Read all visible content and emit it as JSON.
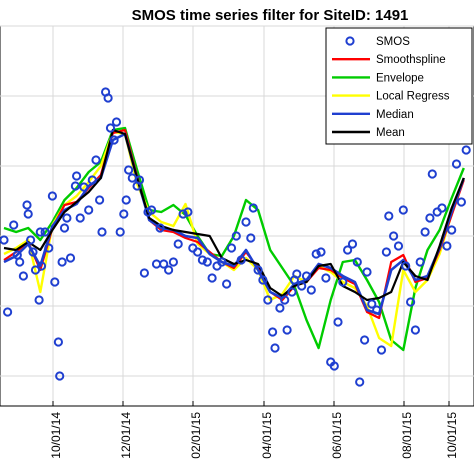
{
  "chart_data": {
    "type": "line",
    "title": "SMOS time series filter for SiteID: 1491",
    "xlabel": "",
    "ylabel": "",
    "x_ticks": [
      "10/01/14",
      "12/01/14",
      "02/01/15",
      "04/01/15",
      "06/01/15",
      "08/01/15",
      "10/01/15"
    ],
    "grid": true,
    "legend_position": "top-right",
    "series": [
      {
        "name": "SMOS",
        "style": "markers",
        "color": "#1f3fd0",
        "points": [
          [
            0.0,
            240
          ],
          [
            0.3,
            312
          ],
          [
            0.8,
            225
          ],
          [
            1.1,
            255
          ],
          [
            1.3,
            262
          ],
          [
            1.6,
            276
          ],
          [
            1.9,
            205
          ],
          [
            2.0,
            214
          ],
          [
            2.2,
            240
          ],
          [
            2.4,
            252
          ],
          [
            2.6,
            270
          ],
          [
            2.9,
            300
          ],
          [
            3.0,
            232
          ],
          [
            3.1,
            266
          ],
          [
            3.4,
            232
          ],
          [
            3.7,
            248
          ],
          [
            4.0,
            196
          ],
          [
            4.2,
            282
          ],
          [
            4.5,
            342
          ],
          [
            4.6,
            376
          ],
          [
            4.8,
            262
          ],
          [
            5.0,
            228
          ],
          [
            5.2,
            218
          ],
          [
            5.5,
            258
          ],
          [
            5.9,
            186
          ],
          [
            6.0,
            176
          ],
          [
            6.3,
            218
          ],
          [
            6.6,
            187
          ],
          [
            7.0,
            210
          ],
          [
            7.3,
            180
          ],
          [
            7.6,
            160
          ],
          [
            7.9,
            200
          ],
          [
            8.1,
            232
          ],
          [
            8.4,
            92
          ],
          [
            8.6,
            98
          ],
          [
            8.8,
            128
          ],
          [
            9.1,
            140
          ],
          [
            9.3,
            122
          ],
          [
            9.6,
            232
          ],
          [
            9.9,
            214
          ],
          [
            10.1,
            200
          ],
          [
            10.3,
            170
          ],
          [
            10.6,
            178
          ],
          [
            11.0,
            186
          ],
          [
            11.2,
            180
          ],
          [
            11.6,
            273
          ],
          [
            11.9,
            212
          ],
          [
            12.2,
            210
          ],
          [
            12.6,
            264
          ],
          [
            12.9,
            228
          ],
          [
            13.2,
            264
          ],
          [
            13.6,
            270
          ],
          [
            14.0,
            262
          ],
          [
            14.4,
            244
          ],
          [
            14.8,
            214
          ],
          [
            15.2,
            212
          ],
          [
            15.6,
            248
          ],
          [
            16.0,
            252
          ],
          [
            16.4,
            260
          ],
          [
            16.8,
            262
          ],
          [
            17.2,
            278
          ],
          [
            17.6,
            266
          ],
          [
            18.0,
            262
          ],
          [
            18.4,
            284
          ],
          [
            18.8,
            248
          ],
          [
            19.2,
            236
          ],
          [
            19.6,
            260
          ],
          [
            20.0,
            222
          ],
          [
            20.4,
            238
          ],
          [
            20.6,
            208
          ],
          [
            21.0,
            270
          ],
          [
            21.4,
            280
          ],
          [
            21.8,
            300
          ],
          [
            22.2,
            332
          ],
          [
            22.4,
            348
          ],
          [
            22.8,
            308
          ],
          [
            23.2,
            300
          ],
          [
            23.4,
            330
          ],
          [
            23.8,
            292
          ],
          [
            24.0,
            280
          ],
          [
            24.2,
            274
          ],
          [
            24.6,
            286
          ],
          [
            25.0,
            276
          ],
          [
            25.4,
            290
          ],
          [
            25.8,
            254
          ],
          [
            26.2,
            252
          ],
          [
            26.6,
            278
          ],
          [
            27.0,
            362
          ],
          [
            27.3,
            366
          ],
          [
            27.6,
            322
          ],
          [
            28.0,
            282
          ],
          [
            28.4,
            250
          ],
          [
            28.8,
            244
          ],
          [
            29.2,
            262
          ],
          [
            29.4,
            382
          ],
          [
            29.8,
            340
          ],
          [
            30.0,
            272
          ],
          [
            30.4,
            304
          ],
          [
            30.8,
            310
          ],
          [
            31.2,
            350
          ],
          [
            31.6,
            252
          ],
          [
            31.8,
            216
          ],
          [
            32.2,
            236
          ],
          [
            32.6,
            246
          ],
          [
            33.0,
            210
          ],
          [
            33.2,
            266
          ],
          [
            33.6,
            302
          ],
          [
            34.0,
            330
          ],
          [
            34.4,
            262
          ],
          [
            34.8,
            232
          ],
          [
            35.2,
            218
          ],
          [
            35.4,
            174
          ],
          [
            35.8,
            212
          ],
          [
            36.2,
            208
          ],
          [
            36.6,
            246
          ],
          [
            37.0,
            230
          ],
          [
            37.4,
            164
          ],
          [
            37.8,
            202
          ],
          [
            38.2,
            150
          ]
        ]
      },
      {
        "name": "Smoothspline",
        "style": "line",
        "color": "#ff0000",
        "points": [
          [
            0.0,
            260
          ],
          [
            1.0,
            252
          ],
          [
            2.0,
            242
          ],
          [
            3.0,
            270
          ],
          [
            4.0,
            228
          ],
          [
            5.0,
            205
          ],
          [
            6.0,
            202
          ],
          [
            7.0,
            188
          ],
          [
            8.0,
            175
          ],
          [
            9.0,
            133
          ],
          [
            10.0,
            130
          ],
          [
            11.0,
            176
          ],
          [
            12.0,
            220
          ],
          [
            13.0,
            230
          ],
          [
            14.0,
            232
          ],
          [
            15.0,
            238
          ],
          [
            16.0,
            242
          ],
          [
            17.0,
            252
          ],
          [
            18.0,
            262
          ],
          [
            19.0,
            268
          ],
          [
            20.0,
            252
          ],
          [
            21.0,
            268
          ],
          [
            22.0,
            292
          ],
          [
            23.0,
            300
          ],
          [
            24.0,
            286
          ],
          [
            25.0,
            282
          ],
          [
            26.0,
            268
          ],
          [
            27.0,
            270
          ],
          [
            28.0,
            278
          ],
          [
            29.0,
            284
          ],
          [
            30.0,
            312
          ],
          [
            31.0,
            318
          ],
          [
            32.0,
            262
          ],
          [
            33.0,
            255
          ],
          [
            34.0,
            282
          ],
          [
            35.0,
            278
          ],
          [
            36.0,
            250
          ],
          [
            37.0,
            215
          ],
          [
            38.0,
            180
          ]
        ]
      },
      {
        "name": "Envelope",
        "style": "line",
        "color": "#00cc00",
        "points": [
          [
            0.0,
            228
          ],
          [
            1.0,
            232
          ],
          [
            2.0,
            228
          ],
          [
            3.0,
            240
          ],
          [
            4.0,
            222
          ],
          [
            5.0,
            200
          ],
          [
            6.0,
            188
          ],
          [
            7.0,
            172
          ],
          [
            8.0,
            162
          ],
          [
            9.0,
            130
          ],
          [
            10.0,
            128
          ],
          [
            11.0,
            170
          ],
          [
            12.0,
            210
          ],
          [
            13.0,
            212
          ],
          [
            14.0,
            205
          ],
          [
            15.0,
            215
          ],
          [
            16.0,
            236
          ],
          [
            17.0,
            254
          ],
          [
            18.0,
            256
          ],
          [
            19.0,
            236
          ],
          [
            20.0,
            200
          ],
          [
            21.0,
            210
          ],
          [
            22.0,
            250
          ],
          [
            23.0,
            268
          ],
          [
            24.0,
            286
          ],
          [
            25.0,
            320
          ],
          [
            26.0,
            348
          ],
          [
            27.0,
            300
          ],
          [
            28.0,
            262
          ],
          [
            29.0,
            260
          ],
          [
            30.0,
            280
          ],
          [
            31.0,
            302
          ],
          [
            32.0,
            340
          ],
          [
            33.0,
            350
          ],
          [
            34.0,
            288
          ],
          [
            35.0,
            250
          ],
          [
            36.0,
            230
          ],
          [
            37.0,
            198
          ],
          [
            38.0,
            168
          ]
        ]
      },
      {
        "name": "Local Regress",
        "style": "line",
        "color": "#ffff00",
        "points": [
          [
            0.0,
            254
          ],
          [
            1.0,
            248
          ],
          [
            2.0,
            240
          ],
          [
            3.0,
            292
          ],
          [
            4.0,
            225
          ],
          [
            5.0,
            205
          ],
          [
            6.0,
            196
          ],
          [
            7.0,
            182
          ],
          [
            8.0,
            166
          ],
          [
            9.0,
            132
          ],
          [
            10.0,
            134
          ],
          [
            11.0,
            184
          ],
          [
            12.0,
            212
          ],
          [
            13.0,
            222
          ],
          [
            14.0,
            226
          ],
          [
            15.0,
            204
          ],
          [
            16.0,
            244
          ],
          [
            17.0,
            254
          ],
          [
            18.0,
            262
          ],
          [
            19.0,
            270
          ],
          [
            20.0,
            258
          ],
          [
            21.0,
            270
          ],
          [
            22.0,
            300
          ],
          [
            23.0,
            294
          ],
          [
            24.0,
            276
          ],
          [
            25.0,
            282
          ],
          [
            26.0,
            266
          ],
          [
            27.0,
            272
          ],
          [
            28.0,
            282
          ],
          [
            29.0,
            288
          ],
          [
            30.0,
            306
          ],
          [
            31.0,
            338
          ],
          [
            32.0,
            346
          ],
          [
            33.0,
            270
          ],
          [
            34.0,
            292
          ],
          [
            35.0,
            280
          ],
          [
            36.0,
            254
          ],
          [
            37.0,
            214
          ],
          [
            38.0,
            178
          ]
        ]
      },
      {
        "name": "Median",
        "style": "line",
        "color": "#1f3fd0",
        "points": [
          [
            0.0,
            262
          ],
          [
            1.0,
            256
          ],
          [
            2.0,
            244
          ],
          [
            3.0,
            266
          ],
          [
            4.0,
            226
          ],
          [
            5.0,
            210
          ],
          [
            6.0,
            204
          ],
          [
            7.0,
            186
          ],
          [
            8.0,
            178
          ],
          [
            9.0,
            140
          ],
          [
            10.0,
            134
          ],
          [
            11.0,
            178
          ],
          [
            12.0,
            220
          ],
          [
            13.0,
            228
          ],
          [
            14.0,
            230
          ],
          [
            15.0,
            236
          ],
          [
            16.0,
            238
          ],
          [
            17.0,
            254
          ],
          [
            18.0,
            262
          ],
          [
            19.0,
            266
          ],
          [
            20.0,
            250
          ],
          [
            21.0,
            270
          ],
          [
            22.0,
            292
          ],
          [
            23.0,
            298
          ],
          [
            24.0,
            284
          ],
          [
            25.0,
            280
          ],
          [
            26.0,
            264
          ],
          [
            27.0,
            268
          ],
          [
            28.0,
            276
          ],
          [
            29.0,
            282
          ],
          [
            30.0,
            310
          ],
          [
            31.0,
            314
          ],
          [
            32.0,
            270
          ],
          [
            33.0,
            260
          ],
          [
            34.0,
            280
          ],
          [
            35.0,
            276
          ],
          [
            36.0,
            248
          ],
          [
            37.0,
            212
          ],
          [
            38.0,
            178
          ]
        ]
      },
      {
        "name": "Mean",
        "style": "line",
        "color": "#000000",
        "points": [
          [
            0.0,
            248
          ],
          [
            1.0,
            250
          ],
          [
            2.0,
            242
          ],
          [
            3.0,
            250
          ],
          [
            4.0,
            230
          ],
          [
            5.0,
            212
          ],
          [
            6.0,
            202
          ],
          [
            7.0,
            192
          ],
          [
            8.0,
            178
          ],
          [
            9.0,
            130
          ],
          [
            10.0,
            134
          ],
          [
            11.0,
            178
          ],
          [
            12.0,
            218
          ],
          [
            13.0,
            226
          ],
          [
            14.0,
            230
          ],
          [
            15.0,
            232
          ],
          [
            16.0,
            234
          ],
          [
            17.0,
            236
          ],
          [
            18.0,
            258
          ],
          [
            19.0,
            264
          ],
          [
            20.0,
            260
          ],
          [
            21.0,
            264
          ],
          [
            22.0,
            288
          ],
          [
            23.0,
            296
          ],
          [
            24.0,
            286
          ],
          [
            25.0,
            282
          ],
          [
            26.0,
            266
          ],
          [
            27.0,
            264
          ],
          [
            28.0,
            286
          ],
          [
            29.0,
            292
          ],
          [
            30.0,
            300
          ],
          [
            31.0,
            298
          ],
          [
            32.0,
            292
          ],
          [
            33.0,
            262
          ],
          [
            34.0,
            276
          ],
          [
            35.0,
            280
          ],
          [
            36.0,
            246
          ],
          [
            37.0,
            208
          ],
          [
            38.0,
            178
          ]
        ]
      }
    ]
  }
}
